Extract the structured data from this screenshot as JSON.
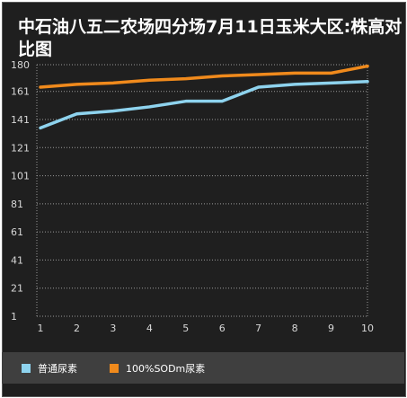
{
  "title": "中石油八五二农场四分场7月11日玉米大区:株高对比图",
  "colors": {
    "background": "#1f1f1f",
    "grid": "#9a9a9a",
    "axis_text": "#d8d8d8",
    "legend_bg": "#3f3f3f"
  },
  "chart_data": {
    "type": "line",
    "title": "中石油八五二农场四分场7月11日玉米大区:株高对比图",
    "xlabel": "",
    "ylabel": "",
    "categories": [
      "1",
      "2",
      "3",
      "4",
      "5",
      "6",
      "7",
      "8",
      "9",
      "10"
    ],
    "y_ticks": [
      1,
      21,
      41,
      61,
      81,
      101,
      121,
      141,
      161,
      180
    ],
    "ylim": [
      1,
      180
    ],
    "grid": true,
    "legend_position": "bottom",
    "series": [
      {
        "name": "普通尿素",
        "color": "#8ed3ee",
        "values": [
          135,
          145,
          147,
          150,
          154,
          154,
          164,
          166,
          167,
          168
        ]
      },
      {
        "name": "100%SODm尿素",
        "color": "#f08a1c",
        "values": [
          164,
          166,
          167,
          169,
          170,
          172,
          173,
          174,
          174,
          179
        ]
      }
    ]
  }
}
